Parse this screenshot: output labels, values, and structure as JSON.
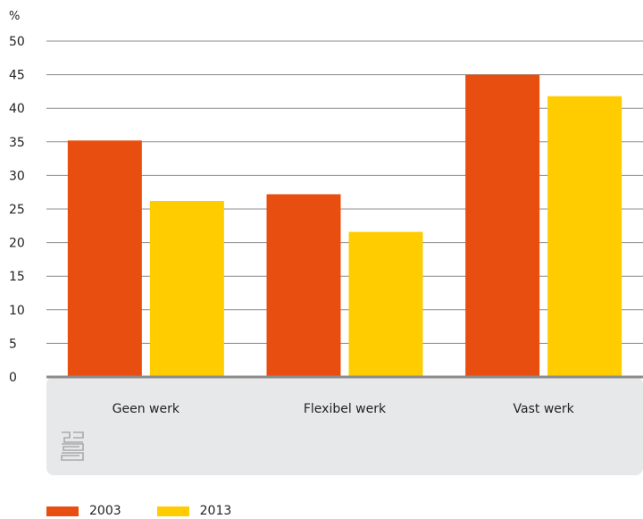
{
  "chart_data": {
    "type": "bar",
    "ylabel": "%",
    "ylim": [
      0,
      50
    ],
    "yticks": [
      0,
      5,
      10,
      15,
      20,
      25,
      30,
      35,
      40,
      45,
      50
    ],
    "categories": [
      "Geen werk",
      "Flexibel werk",
      "Vast werk"
    ],
    "series": [
      {
        "name": "2003",
        "color": "#e84e0f",
        "values": [
          35.2,
          27.2,
          45.0
        ]
      },
      {
        "name": "2013",
        "color": "#ffcc00",
        "values": [
          26.2,
          21.6,
          41.8
        ]
      }
    ],
    "grid": true,
    "legend_position": "bottom-left"
  },
  "logo": {
    "icon": "cbs-logo-icon"
  },
  "colors": {
    "category_panel": "#e7e8ea",
    "axis": "#8c8c8c",
    "grid": "#8c8c8c",
    "logo": "#a9aaac"
  }
}
